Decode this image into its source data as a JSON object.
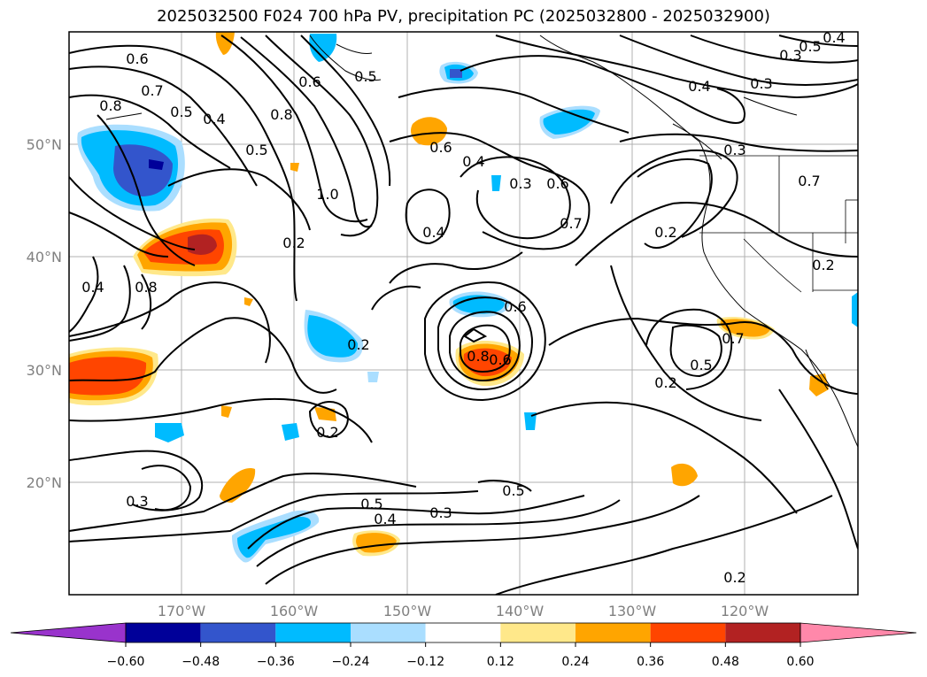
{
  "title": "2025032500 F024 700 hPa PV, precipitation PC (2025032800 - 2025032900)",
  "lat_labels": [
    "50°N",
    "40°N",
    "30°N",
    "20°N"
  ],
  "lon_labels": [
    "170°W",
    "160°W",
    "150°W",
    "140°W",
    "130°W",
    "120°W"
  ],
  "contour_labels": [
    "0.6",
    "0.7",
    "0.8",
    "0.5",
    "0.4",
    "0.8",
    "0.5",
    "0.6",
    "1.0",
    "0.2",
    "0.6",
    "0.4",
    "0.3",
    "0.6",
    "0.7",
    "0.4",
    "0.5",
    "0.4",
    "0.3",
    "0.4",
    "0.3",
    "0.3",
    "0.5",
    "0.2",
    "0.2",
    "0.7",
    "0.6",
    "0.8",
    "0.6",
    "0.2",
    "0.8",
    "0.4",
    "0.5",
    "0.2",
    "0.2",
    "0.3",
    "0.5",
    "0.4",
    "0.3",
    "0.5",
    "0.2",
    "0.7"
  ],
  "colorbar": {
    "tick_labels": [
      "−0.60",
      "−0.48",
      "−0.36",
      "−0.24",
      "−0.12",
      "0.12",
      "0.24",
      "0.36",
      "0.48",
      "0.60"
    ],
    "colors": [
      "#9933cc",
      "#000099",
      "#3355cc",
      "#00bbff",
      "#aadeff",
      "#ffffff",
      "#ffe88a",
      "#ffa500",
      "#ff4500",
      "#b22222",
      "#ff88aa"
    ]
  }
}
